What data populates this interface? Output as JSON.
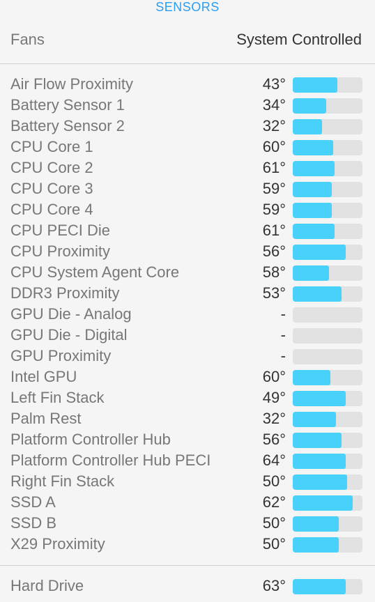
{
  "header": {
    "title": "SENSORS"
  },
  "fans": {
    "label": "Fans",
    "value": "System Controlled"
  },
  "colors": {
    "accent": "#2a9df4",
    "bar_fill": "#47d1fb",
    "bar_track": "#e2e2e2"
  },
  "sensors": [
    {
      "name": "Air Flow Proximity",
      "temp": "43°",
      "level": 0.64
    },
    {
      "name": "Battery Sensor 1",
      "temp": "34°",
      "level": 0.48
    },
    {
      "name": "Battery Sensor 2",
      "temp": "32°",
      "level": 0.42
    },
    {
      "name": "CPU Core 1",
      "temp": "60°",
      "level": 0.58
    },
    {
      "name": "CPU Core 2",
      "temp": "61°",
      "level": 0.6
    },
    {
      "name": "CPU Core 3",
      "temp": "59°",
      "level": 0.56
    },
    {
      "name": "CPU Core 4",
      "temp": "59°",
      "level": 0.56
    },
    {
      "name": "CPU PECI Die",
      "temp": "61°",
      "level": 0.6
    },
    {
      "name": "CPU Proximity",
      "temp": "56°",
      "level": 0.76
    },
    {
      "name": "CPU System Agent Core",
      "temp": "58°",
      "level": 0.52
    },
    {
      "name": "DDR3 Proximity",
      "temp": "53°",
      "level": 0.7
    },
    {
      "name": "GPU Die - Analog",
      "temp": "-",
      "level": 0
    },
    {
      "name": "GPU Die - Digital",
      "temp": "-",
      "level": 0
    },
    {
      "name": "GPU Proximity",
      "temp": "-",
      "level": 0
    },
    {
      "name": "Intel GPU",
      "temp": "60°",
      "level": 0.54
    },
    {
      "name": "Left Fin Stack",
      "temp": "49°",
      "level": 0.76
    },
    {
      "name": "Palm Rest",
      "temp": "32°",
      "level": 0.62
    },
    {
      "name": "Platform Controller Hub",
      "temp": "56°",
      "level": 0.7
    },
    {
      "name": "Platform Controller Hub PECI",
      "temp": "64°",
      "level": 0.76
    },
    {
      "name": "Right Fin Stack",
      "temp": "50°",
      "level": 0.78
    },
    {
      "name": "SSD A",
      "temp": "62°",
      "level": 0.86
    },
    {
      "name": "SSD B",
      "temp": "50°",
      "level": 0.66
    },
    {
      "name": "X29 Proximity",
      "temp": "50°",
      "level": 0.66
    }
  ],
  "hard_drive": {
    "name": "Hard Drive",
    "temp": "63°",
    "level": 0.76
  }
}
